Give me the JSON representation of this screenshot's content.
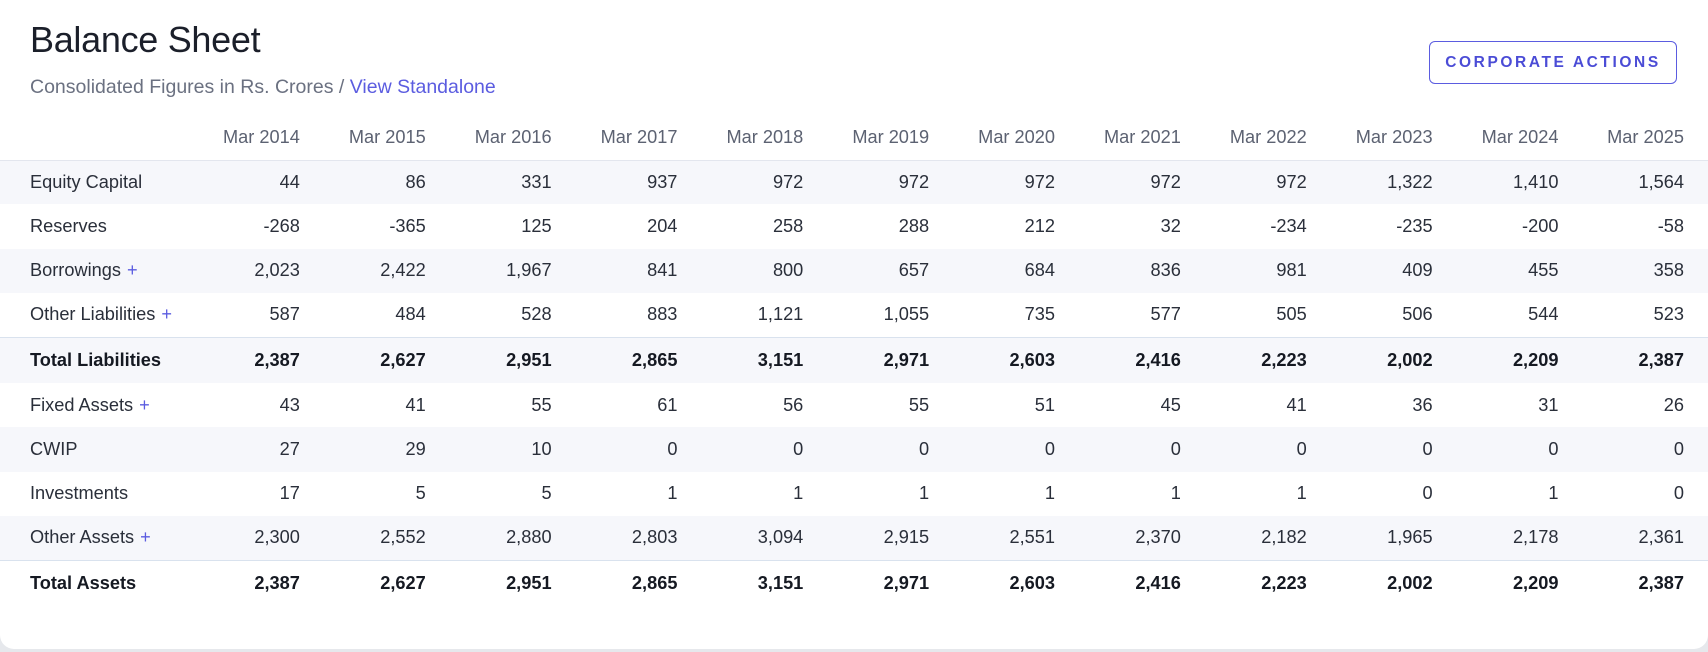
{
  "header": {
    "title": "Balance Sheet",
    "subtitle_text": "Consolidated Figures in Rs. Crores",
    "subtitle_separator": "/",
    "subtitle_link": "View Standalone",
    "action_button": "CORPORATE ACTIONS"
  },
  "colors": {
    "accent": "#5b5ce0",
    "shaded_row": "#f6f7fb",
    "text": "#2a2f3a"
  },
  "table": {
    "columns": [
      "Mar 2014",
      "Mar 2015",
      "Mar 2016",
      "Mar 2017",
      "Mar 2018",
      "Mar 2019",
      "Mar 2020",
      "Mar 2021",
      "Mar 2022",
      "Mar 2023",
      "Mar 2024",
      "Mar 2025"
    ],
    "rows": [
      {
        "label": "Equity Capital",
        "expandable": false,
        "total": false,
        "shaded": true,
        "values": [
          "44",
          "86",
          "331",
          "937",
          "972",
          "972",
          "972",
          "972",
          "972",
          "1,322",
          "1,410",
          "1,564"
        ]
      },
      {
        "label": "Reserves",
        "expandable": false,
        "total": false,
        "shaded": false,
        "values": [
          "-268",
          "-365",
          "125",
          "204",
          "258",
          "288",
          "212",
          "32",
          "-234",
          "-235",
          "-200",
          "-58"
        ]
      },
      {
        "label": "Borrowings",
        "expandable": true,
        "total": false,
        "shaded": true,
        "values": [
          "2,023",
          "2,422",
          "1,967",
          "841",
          "800",
          "657",
          "684",
          "836",
          "981",
          "409",
          "455",
          "358"
        ]
      },
      {
        "label": "Other Liabilities",
        "expandable": true,
        "total": false,
        "shaded": false,
        "values": [
          "587",
          "484",
          "528",
          "883",
          "1,121",
          "1,055",
          "735",
          "577",
          "505",
          "506",
          "544",
          "523"
        ]
      },
      {
        "label": "Total Liabilities",
        "expandable": false,
        "total": true,
        "shaded": true,
        "values": [
          "2,387",
          "2,627",
          "2,951",
          "2,865",
          "3,151",
          "2,971",
          "2,603",
          "2,416",
          "2,223",
          "2,002",
          "2,209",
          "2,387"
        ]
      },
      {
        "label": "Fixed Assets",
        "expandable": true,
        "total": false,
        "shaded": false,
        "values": [
          "43",
          "41",
          "55",
          "61",
          "56",
          "55",
          "51",
          "45",
          "41",
          "36",
          "31",
          "26"
        ]
      },
      {
        "label": "CWIP",
        "expandable": false,
        "total": false,
        "shaded": true,
        "values": [
          "27",
          "29",
          "10",
          "0",
          "0",
          "0",
          "0",
          "0",
          "0",
          "0",
          "0",
          "0"
        ]
      },
      {
        "label": "Investments",
        "expandable": false,
        "total": false,
        "shaded": false,
        "values": [
          "17",
          "5",
          "5",
          "1",
          "1",
          "1",
          "1",
          "1",
          "1",
          "0",
          "1",
          "0"
        ]
      },
      {
        "label": "Other Assets",
        "expandable": true,
        "total": false,
        "shaded": true,
        "values": [
          "2,300",
          "2,552",
          "2,880",
          "2,803",
          "3,094",
          "2,915",
          "2,551",
          "2,370",
          "2,182",
          "1,965",
          "2,178",
          "2,361"
        ]
      },
      {
        "label": "Total Assets",
        "expandable": false,
        "total": true,
        "shaded": false,
        "values": [
          "2,387",
          "2,627",
          "2,951",
          "2,865",
          "3,151",
          "2,971",
          "2,603",
          "2,416",
          "2,223",
          "2,002",
          "2,209",
          "2,387"
        ]
      }
    ],
    "expand_symbol": "+"
  }
}
